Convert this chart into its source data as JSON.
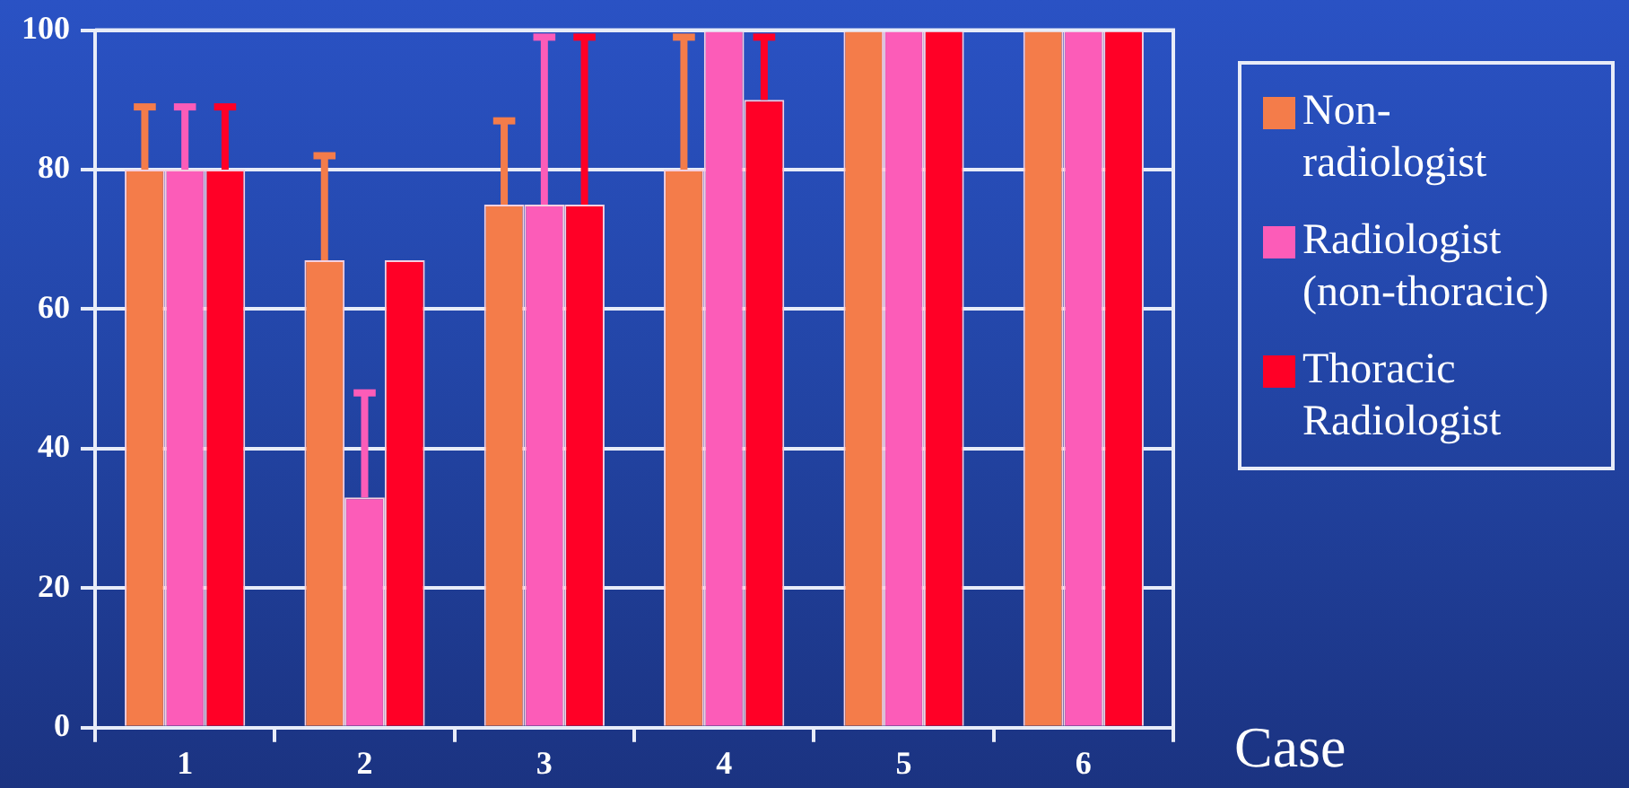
{
  "chart_data": {
    "type": "bar",
    "xlabel": "Case",
    "categories": [
      "1",
      "2",
      "3",
      "4",
      "5",
      "6"
    ],
    "series": [
      {
        "name": "Non-radiologist",
        "color": "#f47c4a",
        "values": [
          80,
          67,
          75,
          80,
          100,
          100
        ],
        "errors": [
          [
            80,
            89
          ],
          [
            67,
            82
          ],
          [
            75,
            87
          ],
          [
            80,
            99
          ],
          null,
          null
        ]
      },
      {
        "name": "Radiologist (non-thoracic)",
        "color": "#fc5cb8",
        "values": [
          80,
          33,
          75,
          100,
          100,
          100
        ],
        "errors": [
          [
            80,
            89
          ],
          [
            33,
            48
          ],
          [
            75,
            99
          ],
          null,
          null,
          null
        ]
      },
      {
        "name": "Thoracic Radiologist",
        "color": "#ff0026",
        "values": [
          80,
          67,
          75,
          90,
          100,
          100
        ],
        "errors": [
          [
            80,
            89
          ],
          null,
          [
            75,
            99
          ],
          [
            90,
            99
          ],
          null,
          null
        ]
      }
    ],
    "ylim": [
      0,
      100
    ],
    "yticks": [
      0,
      20,
      40,
      60,
      80,
      100
    ],
    "grid": "y",
    "legend": "right"
  }
}
